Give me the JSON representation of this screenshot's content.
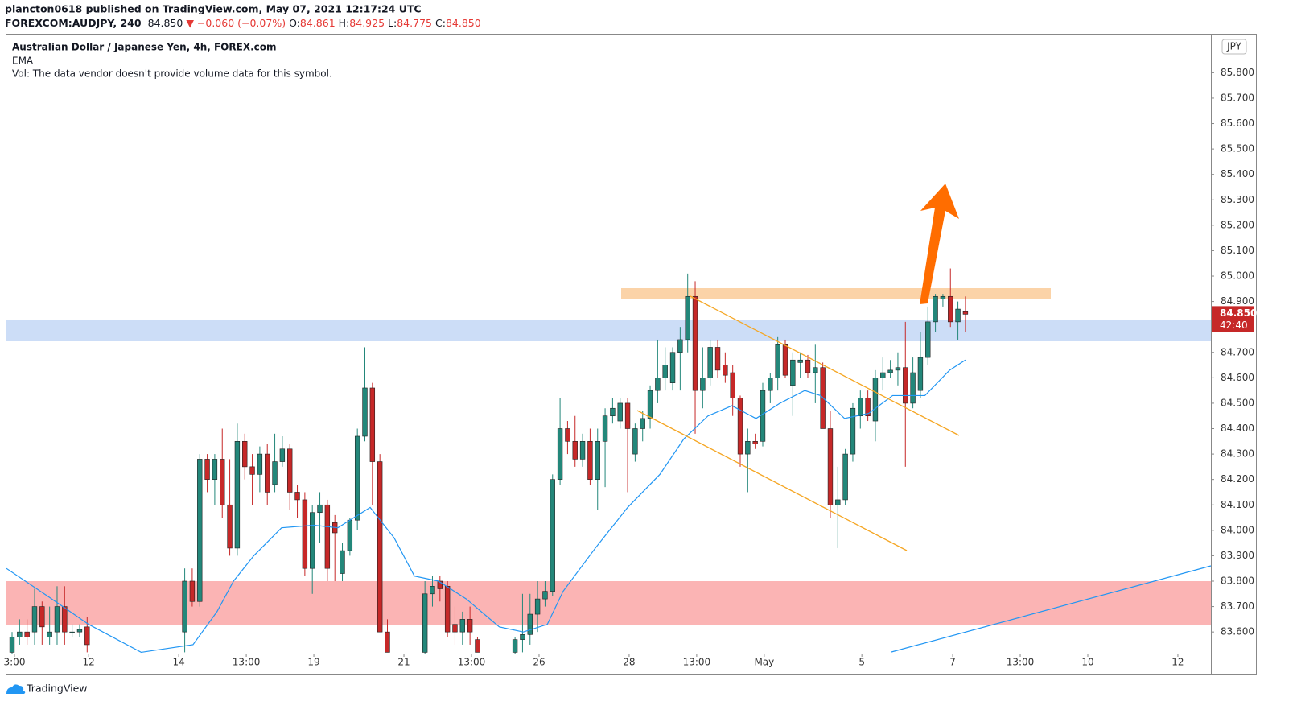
{
  "header": {
    "publisher": "plancton0618 published on TradingView.com, May 07, 2021 12:17:24 UTC",
    "symbol": "FOREXCOM:AUDJPY, 240",
    "last": "84.850",
    "change": "▼ −0.060 (−0.07%)",
    "ohlc": [
      {
        "label": "O:",
        "value": "84.861"
      },
      {
        "label": "H:",
        "value": "84.925"
      },
      {
        "label": "L:",
        "value": "84.775"
      },
      {
        "label": "C:",
        "value": "84.850"
      }
    ]
  },
  "legend": {
    "title": "Australian Dollar / Japanese Yen, 4h, FOREX.com",
    "volume": "Vol: The data vendor doesn't provide volume data for this symbol."
  },
  "footer": {
    "brand": "TradingView"
  },
  "chart_data": {
    "type": "candlestick",
    "currency": "JPY",
    "up_color": "#23877a",
    "down_color": "#c62828",
    "grid": false,
    "xlim": [
      -0.75,
      159.7
    ],
    "ylim": [
      83.515,
      85.95
    ],
    "xticks": [
      {
        "value": 0.32,
        "label": "3:00"
      },
      {
        "value": 10.2,
        "label": "12"
      },
      {
        "value": 22.2,
        "label": "14"
      },
      {
        "value": 31.2,
        "label": "13:00"
      },
      {
        "value": 40.2,
        "label": "19"
      },
      {
        "value": 52.2,
        "label": "21"
      },
      {
        "value": 61.2,
        "label": "13:00"
      },
      {
        "value": 70.2,
        "label": "26"
      },
      {
        "value": 82.2,
        "label": "28"
      },
      {
        "value": 91.2,
        "label": "13:00"
      },
      {
        "value": 100.2,
        "label": "May"
      },
      {
        "value": 113.2,
        "label": "5"
      },
      {
        "value": 125.3,
        "label": "7"
      },
      {
        "value": 134.3,
        "label": "13:00"
      },
      {
        "value": 143.3,
        "label": "10"
      },
      {
        "value": 155.3,
        "label": "12"
      }
    ],
    "yticks": [
      {
        "value": 83.6,
        "label": "83.600"
      },
      {
        "value": 83.7,
        "label": "83.700"
      },
      {
        "value": 83.8,
        "label": "83.800"
      },
      {
        "value": 83.9,
        "label": "83.900"
      },
      {
        "value": 84.0,
        "label": "84.000"
      },
      {
        "value": 84.1,
        "label": "84.100"
      },
      {
        "value": 84.2,
        "label": "84.200"
      },
      {
        "value": 84.3,
        "label": "84.300"
      },
      {
        "value": 84.4,
        "label": "84.400"
      },
      {
        "value": 84.5,
        "label": "84.500"
      },
      {
        "value": 84.6,
        "label": "84.600"
      },
      {
        "value": 84.7,
        "label": "84.700"
      },
      {
        "value": 84.9,
        "label": "84.900"
      },
      {
        "value": 85.0,
        "label": "85.000"
      },
      {
        "value": 85.1,
        "label": "85.100"
      },
      {
        "value": 85.2,
        "label": "85.200"
      },
      {
        "value": 85.3,
        "label": "85.300"
      },
      {
        "value": 85.4,
        "label": "85.400"
      },
      {
        "value": 85.5,
        "label": "85.500"
      },
      {
        "value": 85.6,
        "label": "85.600"
      },
      {
        "value": 85.7,
        "label": "85.700"
      },
      {
        "value": 85.8,
        "label": "85.800"
      }
    ],
    "price_tag": {
      "value": 84.85,
      "label": "84.850",
      "countdown": "42:40"
    },
    "open": [
      83.52,
      83.58,
      83.6,
      83.6,
      83.7,
      83.58,
      83.6,
      83.7,
      83.6,
      83.6,
      83.62,
      null,
      null,
      null,
      null,
      null,
      null,
      null,
      null,
      null,
      null,
      null,
      null,
      83.6,
      83.8,
      83.72,
      84.28,
      84.2,
      84.28,
      84.1,
      83.93,
      84.35,
      84.25,
      84.22,
      84.3,
      84.18,
      84.27,
      84.32,
      84.15,
      84.12,
      83.85,
      84.07,
      84.1,
      84.03,
      83.83,
      83.92,
      84.04,
      84.37,
      84.56,
      84.27,
      83.6,
      null,
      null,
      null,
      null,
      83.52,
      83.75,
      83.8,
      83.78,
      83.63,
      83.6,
      83.65,
      83.57,
      null,
      null,
      null,
      null,
      83.52,
      83.57,
      83.59,
      83.67,
      83.73,
      83.76,
      84.2,
      84.4,
      84.35,
      84.28,
      84.35,
      84.2,
      84.35,
      84.45,
      84.43,
      84.5,
      84.3,
      84.4,
      84.44,
      84.55,
      84.6,
      84.58,
      84.7,
      84.75,
      84.92,
      84.55,
      84.6,
      84.72,
      84.65,
      84.62,
      84.52,
      84.3,
      84.35,
      84.35,
      84.55,
      84.6,
      84.73,
      84.57,
      84.66,
      84.67,
      84.62,
      84.64,
      84.4,
      84.1,
      84.12,
      84.3,
      84.45,
      84.52,
      84.43,
      84.6,
      84.62,
      84.63,
      84.64,
      84.5,
      84.55,
      84.68,
      84.82,
      84.91,
      84.92,
      84.82,
      84.86
    ],
    "high": [
      83.6,
      83.65,
      83.65,
      83.77,
      83.72,
      83.7,
      83.78,
      83.78,
      83.63,
      83.63,
      83.66,
      null,
      null,
      null,
      null,
      null,
      null,
      null,
      null,
      null,
      null,
      null,
      null,
      83.85,
      83.85,
      84.3,
      84.3,
      84.3,
      84.4,
      84.28,
      84.42,
      84.38,
      84.3,
      84.33,
      84.34,
      84.38,
      84.37,
      84.34,
      84.18,
      84.15,
      84.1,
      84.15,
      84.12,
      84.06,
      83.95,
      84.05,
      84.4,
      84.72,
      84.58,
      84.3,
      83.65,
      null,
      null,
      null,
      null,
      83.8,
      83.82,
      83.82,
      83.8,
      83.7,
      83.68,
      83.7,
      83.58,
      null,
      null,
      null,
      null,
      83.58,
      83.75,
      83.75,
      83.8,
      83.8,
      84.22,
      84.52,
      84.43,
      84.45,
      84.38,
      84.4,
      84.4,
      84.48,
      84.52,
      84.52,
      84.52,
      84.42,
      84.47,
      84.57,
      84.75,
      84.72,
      84.72,
      84.8,
      85.01,
      84.98,
      84.72,
      84.75,
      84.75,
      84.7,
      84.65,
      84.53,
      84.4,
      84.38,
      84.58,
      84.62,
      84.76,
      84.75,
      84.7,
      84.7,
      84.69,
      84.73,
      84.66,
      84.47,
      84.25,
      84.32,
      84.5,
      84.55,
      84.55,
      84.63,
      84.68,
      84.67,
      84.7,
      84.82,
      84.68,
      84.78,
      84.88,
      84.93,
      84.93,
      85.03,
      84.9,
      84.92
    ],
    "low": [
      83.5,
      83.55,
      83.55,
      83.55,
      83.55,
      83.55,
      83.55,
      83.55,
      83.58,
      83.58,
      83.52,
      null,
      null,
      null,
      null,
      null,
      null,
      null,
      null,
      null,
      null,
      null,
      null,
      83.52,
      83.7,
      83.7,
      84.15,
      84.1,
      84.05,
      83.9,
      83.9,
      84.2,
      84.1,
      84.15,
      84.1,
      84.15,
      84.25,
      84.08,
      84.05,
      83.82,
      83.75,
      83.95,
      83.8,
      83.8,
      83.8,
      83.9,
      84.0,
      84.35,
      84.1,
      83.6,
      83.52,
      null,
      null,
      null,
      null,
      83.5,
      83.7,
      83.72,
      83.58,
      83.55,
      83.55,
      83.55,
      83.52,
      null,
      null,
      null,
      null,
      83.5,
      83.52,
      83.55,
      83.6,
      83.7,
      83.74,
      84.18,
      84.3,
      84.25,
      84.25,
      84.18,
      84.08,
      84.17,
      84.42,
      84.4,
      84.15,
      84.27,
      84.35,
      84.4,
      84.5,
      84.55,
      84.55,
      84.55,
      84.7,
      84.38,
      84.48,
      84.57,
      84.6,
      84.58,
      84.45,
      84.25,
      84.15,
      84.32,
      84.33,
      84.5,
      84.55,
      84.6,
      84.45,
      84.6,
      84.6,
      84.5,
      84.4,
      84.05,
      83.93,
      84.1,
      84.27,
      84.4,
      84.43,
      84.35,
      84.55,
      84.6,
      84.57,
      84.25,
      84.48,
      84.52,
      84.65,
      84.78,
      84.88,
      84.8,
      84.75,
      84.78
    ],
    "close": [
      83.58,
      83.6,
      83.58,
      83.7,
      83.62,
      83.6,
      83.7,
      83.6,
      83.6,
      83.61,
      83.55,
      null,
      null,
      null,
      null,
      null,
      null,
      null,
      null,
      null,
      null,
      null,
      null,
      83.8,
      83.72,
      84.28,
      84.2,
      84.28,
      84.1,
      83.93,
      84.35,
      84.25,
      84.22,
      84.3,
      84.15,
      84.27,
      84.32,
      84.15,
      84.12,
      83.85,
      84.07,
      84.1,
      83.85,
      83.99,
      83.92,
      84.04,
      84.37,
      84.56,
      84.27,
      83.6,
      83.52,
      null,
      null,
      null,
      null,
      83.75,
      83.78,
      83.77,
      83.6,
      83.6,
      83.65,
      83.6,
      83.52,
      null,
      null,
      null,
      null,
      83.57,
      83.59,
      83.67,
      83.73,
      83.76,
      84.2,
      84.4,
      84.35,
      84.28,
      84.35,
      84.2,
      84.35,
      84.45,
      84.48,
      84.5,
      84.4,
      84.4,
      84.44,
      84.55,
      84.6,
      84.65,
      84.7,
      84.75,
      84.92,
      84.55,
      84.6,
      84.72,
      84.63,
      84.61,
      84.52,
      84.3,
      84.35,
      84.34,
      84.55,
      84.6,
      84.73,
      84.61,
      84.67,
      84.67,
      84.62,
      84.64,
      84.4,
      84.1,
      84.12,
      84.3,
      84.48,
      84.52,
      84.45,
      84.6,
      84.62,
      84.63,
      84.64,
      84.5,
      84.62,
      84.68,
      84.82,
      84.92,
      84.92,
      84.82,
      84.87,
      84.85
    ],
    "ema": {
      "name": "EMA",
      "color": "#2196f3",
      "x": [
        -0.75,
        4.8,
        10.2,
        17.2,
        24.1,
        27.3,
        29.5,
        32.2,
        35.9,
        40.2,
        43.4,
        47.7,
        50.9,
        53.6,
        56.8,
        60.5,
        64.9,
        68.1,
        71.3,
        73.4,
        77.7,
        82,
        86.3,
        89.5,
        92.7,
        95.9,
        99.1,
        102.3,
        105.6,
        107.7,
        110.9,
        114.1,
        117.3,
        121.6,
        124.9,
        127
      ],
      "values": [
        83.85,
        83.74,
        83.63,
        83.52,
        83.55,
        83.68,
        83.8,
        83.9,
        84.01,
        84.02,
        84.01,
        84.09,
        83.97,
        83.82,
        83.8,
        83.73,
        83.62,
        83.6,
        83.63,
        83.76,
        83.93,
        84.09,
        84.22,
        84.36,
        84.45,
        84.49,
        84.44,
        84.5,
        84.55,
        84.53,
        84.44,
        84.46,
        84.53,
        84.53,
        84.63,
        84.67
      ]
    }
  }
}
